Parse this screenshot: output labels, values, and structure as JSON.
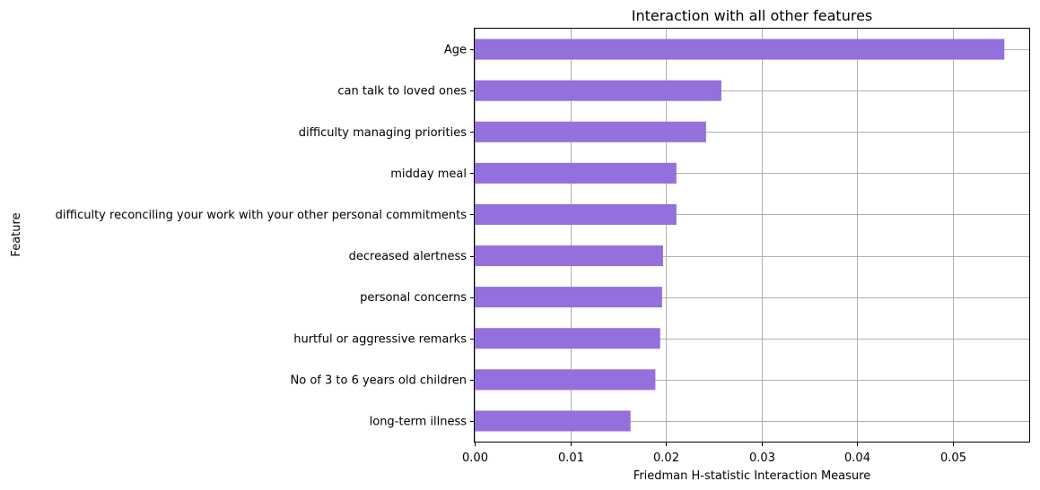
{
  "chart_data": {
    "type": "bar",
    "orientation": "horizontal",
    "title": "Interaction with all other features",
    "xlabel": "Friedman H-statistic Interaction Measure",
    "ylabel": "Feature",
    "xlim": [
      0.0,
      0.058
    ],
    "xticks": [
      "0.00",
      "0.01",
      "0.02",
      "0.03",
      "0.04",
      "0.05"
    ],
    "grid": true,
    "bar_color": "#9370DB",
    "categories": [
      "Age",
      "can talk to loved ones",
      "difficulty managing priorities",
      "midday meal",
      "difficulty reconciling your work with your other personal commitments",
      "decreased alertness",
      "personal concerns",
      "hurtful or aggressive remarks",
      "No of 3 to 6 years old children",
      "long-term illness"
    ],
    "values": [
      0.0554,
      0.0258,
      0.0242,
      0.0211,
      0.0211,
      0.0197,
      0.0196,
      0.0194,
      0.0189,
      0.0163
    ]
  }
}
